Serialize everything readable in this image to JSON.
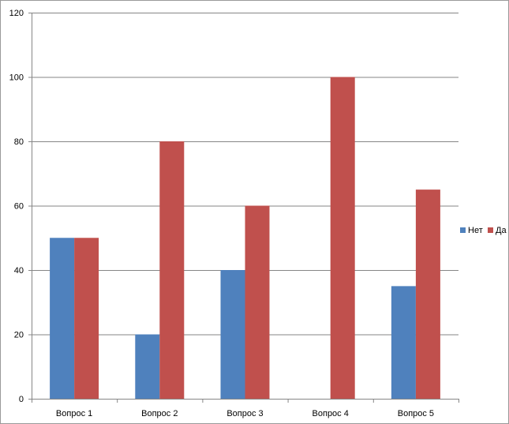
{
  "chart_data": {
    "type": "bar",
    "categories": [
      "Вопрос 1",
      "Вопрос 2",
      "Вопрос 3",
      "Вопрос 4",
      "Вопрос 5"
    ],
    "series": [
      {
        "name": "Нет",
        "color": "#4F81BD",
        "values": [
          50,
          20,
          40,
          0,
          35
        ]
      },
      {
        "name": "Да",
        "color": "#C0504D",
        "values": [
          50,
          80,
          60,
          100,
          65
        ]
      }
    ],
    "ylim": [
      0,
      120
    ],
    "yticks": [
      0,
      20,
      40,
      60,
      80,
      100,
      120
    ],
    "grid": true,
    "legend_position": "right",
    "title": "",
    "xlabel": "",
    "ylabel": ""
  }
}
